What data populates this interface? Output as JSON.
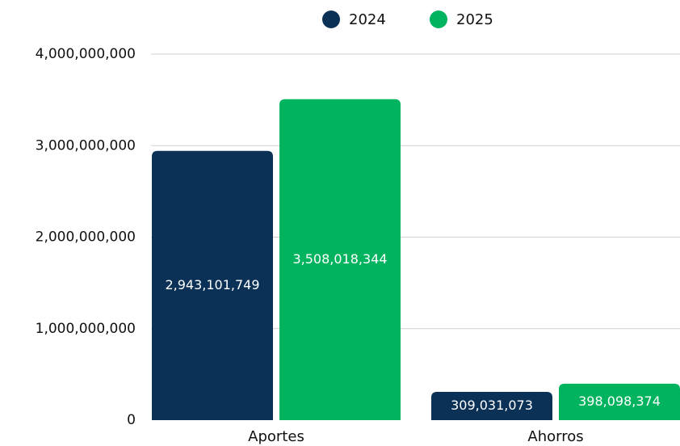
{
  "chart_data": {
    "type": "bar",
    "categories": [
      "Aportes",
      "Ahorros"
    ],
    "series": [
      {
        "name": "2024",
        "color": "#0b3157",
        "values": [
          2943101749,
          309031073
        ],
        "value_labels": [
          "2,943,101,749",
          "309,031,073"
        ]
      },
      {
        "name": "2025",
        "color": "#00b35f",
        "values": [
          3508018344,
          398098374
        ],
        "value_labels": [
          "3,508,018,344",
          "398,098,374"
        ]
      }
    ],
    "ylim": [
      0,
      4000000000
    ],
    "yticks": [
      0,
      {
        "value": 1000000000,
        "label": "1,000,000,000"
      },
      {
        "value": 2000000000,
        "label": "2,000,000,000"
      },
      {
        "value": 3000000000,
        "label": "3,000,000,000"
      },
      {
        "value": 4000000000,
        "label": "4,000,000,000"
      }
    ],
    "grid": true
  }
}
